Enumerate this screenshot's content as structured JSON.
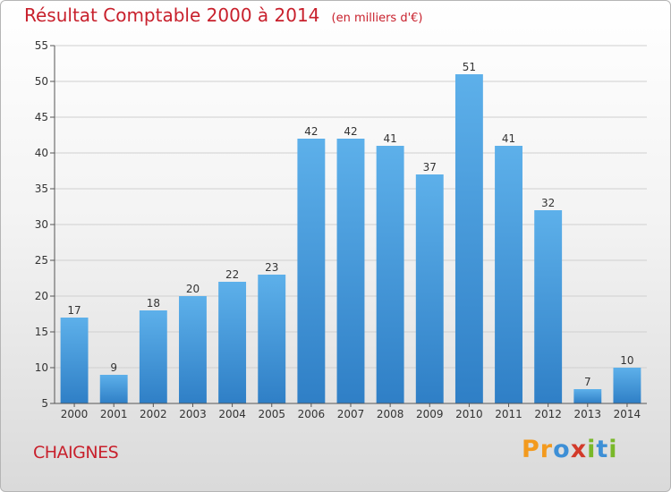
{
  "title": {
    "main": "Résultat Comptable 2000 à 2014",
    "sub": "(en milliers d'€)"
  },
  "commune": "CHAIGNES",
  "logo": {
    "text": "Proxiti",
    "letters": [
      "P",
      "r",
      "o",
      "x",
      "i",
      "t",
      "i"
    ],
    "colors": [
      "#f39a1e",
      "#f39a1e",
      "#3d8fd6",
      "#d23a2a",
      "#79b829",
      "#3d8fd6",
      "#79b829"
    ]
  },
  "chart_data": {
    "type": "bar",
    "title": "Résultat Comptable 2000 à 2014 (en milliers d'€)",
    "xlabel": "",
    "ylabel": "",
    "categories": [
      "2000",
      "2001",
      "2002",
      "2003",
      "2004",
      "2005",
      "2006",
      "2007",
      "2008",
      "2009",
      "2010",
      "2011",
      "2012",
      "2013",
      "2014"
    ],
    "values": [
      17,
      9,
      18,
      20,
      22,
      23,
      42,
      42,
      41,
      37,
      51,
      41,
      32,
      7,
      10
    ],
    "ylim": [
      5,
      55
    ],
    "yticks": [
      5,
      10,
      15,
      20,
      25,
      30,
      35,
      40,
      45,
      50,
      55
    ],
    "grid": true,
    "bar_color": "#4d9fe0"
  }
}
